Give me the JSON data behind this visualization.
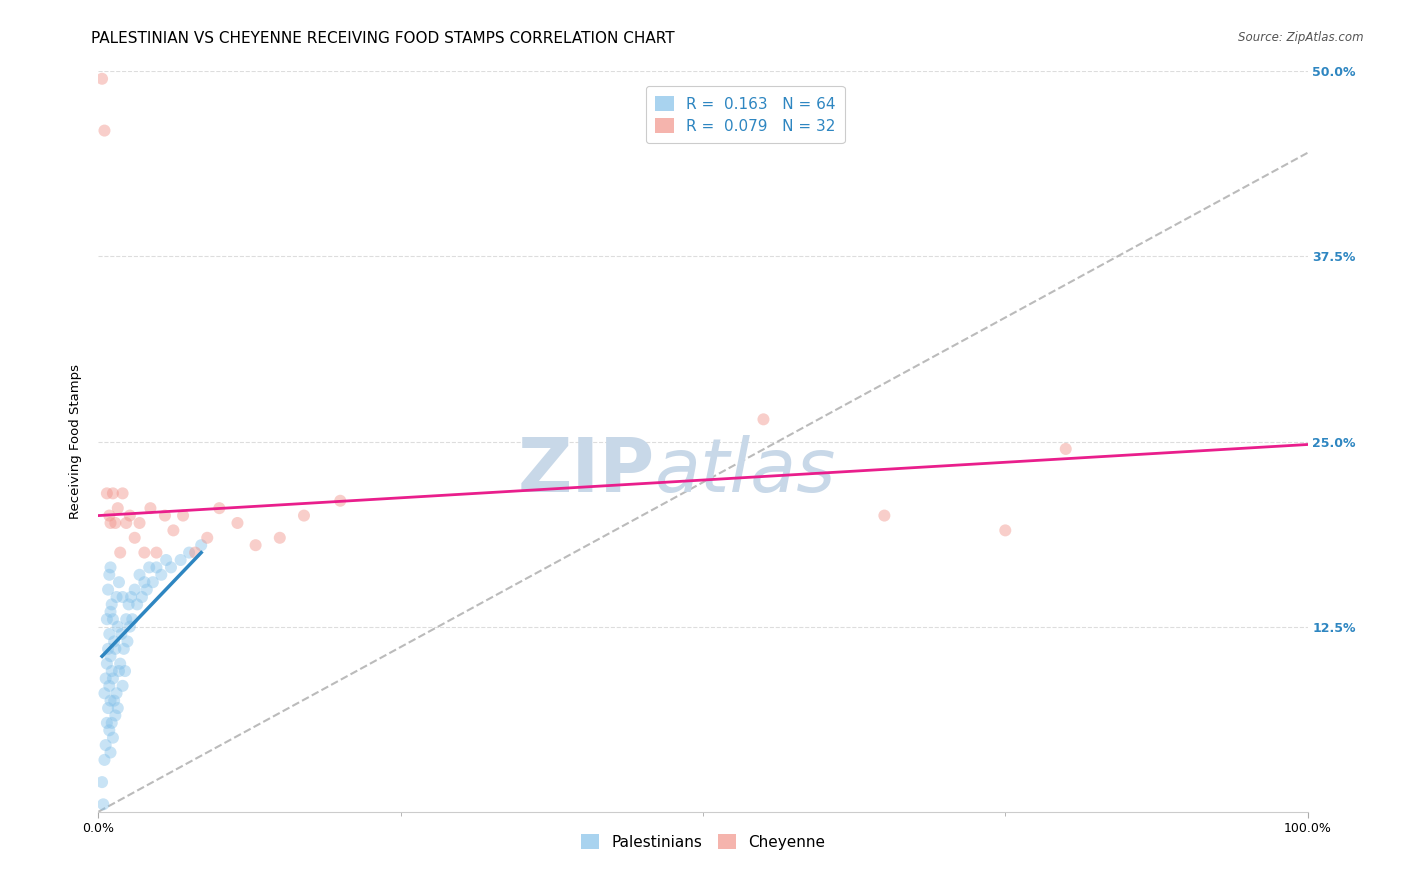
{
  "title": "PALESTINIAN VS CHEYENNE RECEIVING FOOD STAMPS CORRELATION CHART",
  "source": "Source: ZipAtlas.com",
  "ylabel": "Receiving Food Stamps",
  "xlabel": "",
  "xlim": [
    0.0,
    1.0
  ],
  "ylim": [
    0.0,
    0.5
  ],
  "xtick_labels": [
    "0.0%",
    "100.0%"
  ],
  "xtick_positions": [
    0.0,
    1.0
  ],
  "xtick_minor_positions": [
    0.25,
    0.5,
    0.75
  ],
  "ytick_labels": [
    "12.5%",
    "25.0%",
    "37.5%",
    "50.0%"
  ],
  "ytick_positions": [
    0.125,
    0.25,
    0.375,
    0.5
  ],
  "legend_label1": "R =  0.163   N = 64",
  "legend_label2": "R =  0.079   N = 32",
  "legend_label_palestinians": "Palestinians",
  "legend_label_cheyenne": "Cheyenne",
  "blue_color": "#85C1E9",
  "pink_color": "#F1948A",
  "line_blue_color": "#2E86C1",
  "line_pink_color": "#E91E8C",
  "line_dash_color": "#AAAAAA",
  "marker_size": 75,
  "marker_alpha": 0.45,
  "palestinians_x": [
    0.003,
    0.004,
    0.005,
    0.005,
    0.006,
    0.006,
    0.007,
    0.007,
    0.007,
    0.008,
    0.008,
    0.008,
    0.009,
    0.009,
    0.009,
    0.009,
    0.01,
    0.01,
    0.01,
    0.01,
    0.01,
    0.011,
    0.011,
    0.011,
    0.012,
    0.012,
    0.012,
    0.013,
    0.013,
    0.014,
    0.014,
    0.015,
    0.015,
    0.016,
    0.016,
    0.017,
    0.017,
    0.018,
    0.019,
    0.02,
    0.02,
    0.021,
    0.022,
    0.023,
    0.024,
    0.025,
    0.026,
    0.027,
    0.028,
    0.03,
    0.032,
    0.034,
    0.036,
    0.038,
    0.04,
    0.042,
    0.045,
    0.048,
    0.052,
    0.056,
    0.06,
    0.068,
    0.075,
    0.085
  ],
  "palestinians_y": [
    0.02,
    0.005,
    0.035,
    0.08,
    0.09,
    0.045,
    0.06,
    0.1,
    0.13,
    0.07,
    0.11,
    0.15,
    0.055,
    0.085,
    0.12,
    0.16,
    0.04,
    0.075,
    0.105,
    0.135,
    0.165,
    0.06,
    0.095,
    0.14,
    0.05,
    0.09,
    0.13,
    0.075,
    0.115,
    0.065,
    0.11,
    0.08,
    0.145,
    0.07,
    0.125,
    0.095,
    0.155,
    0.1,
    0.12,
    0.085,
    0.145,
    0.11,
    0.095,
    0.13,
    0.115,
    0.14,
    0.125,
    0.145,
    0.13,
    0.15,
    0.14,
    0.16,
    0.145,
    0.155,
    0.15,
    0.165,
    0.155,
    0.165,
    0.16,
    0.17,
    0.165,
    0.17,
    0.175,
    0.18
  ],
  "cheyenne_x": [
    0.003,
    0.005,
    0.007,
    0.009,
    0.01,
    0.012,
    0.014,
    0.016,
    0.018,
    0.02,
    0.023,
    0.026,
    0.03,
    0.034,
    0.038,
    0.043,
    0.048,
    0.055,
    0.062,
    0.07,
    0.08,
    0.09,
    0.1,
    0.115,
    0.13,
    0.15,
    0.17,
    0.2,
    0.55,
    0.65,
    0.75,
    0.8
  ],
  "cheyenne_y": [
    0.495,
    0.46,
    0.215,
    0.2,
    0.195,
    0.215,
    0.195,
    0.205,
    0.175,
    0.215,
    0.195,
    0.2,
    0.185,
    0.195,
    0.175,
    0.205,
    0.175,
    0.2,
    0.19,
    0.2,
    0.175,
    0.185,
    0.205,
    0.195,
    0.18,
    0.185,
    0.2,
    0.21,
    0.265,
    0.2,
    0.19,
    0.245
  ],
  "blue_trendline_x": [
    0.003,
    0.085
  ],
  "blue_trendline_y": [
    0.105,
    0.175
  ],
  "pink_trendline_x": [
    0.0,
    1.0
  ],
  "pink_trendline_y": [
    0.2,
    0.248
  ],
  "dash_trendline_x": [
    0.0,
    1.0
  ],
  "dash_trendline_y": [
    0.0,
    0.445
  ],
  "watermark_zip": "ZIP",
  "watermark_atlas": "atlas",
  "watermark_color": "#C8D8E8",
  "background_color": "#FFFFFF",
  "grid_color": "#DDDDDD",
  "title_fontsize": 11,
  "axis_label_fontsize": 9.5,
  "tick_label_fontsize": 9,
  "legend_fontsize": 11,
  "source_fontsize": 8.5
}
